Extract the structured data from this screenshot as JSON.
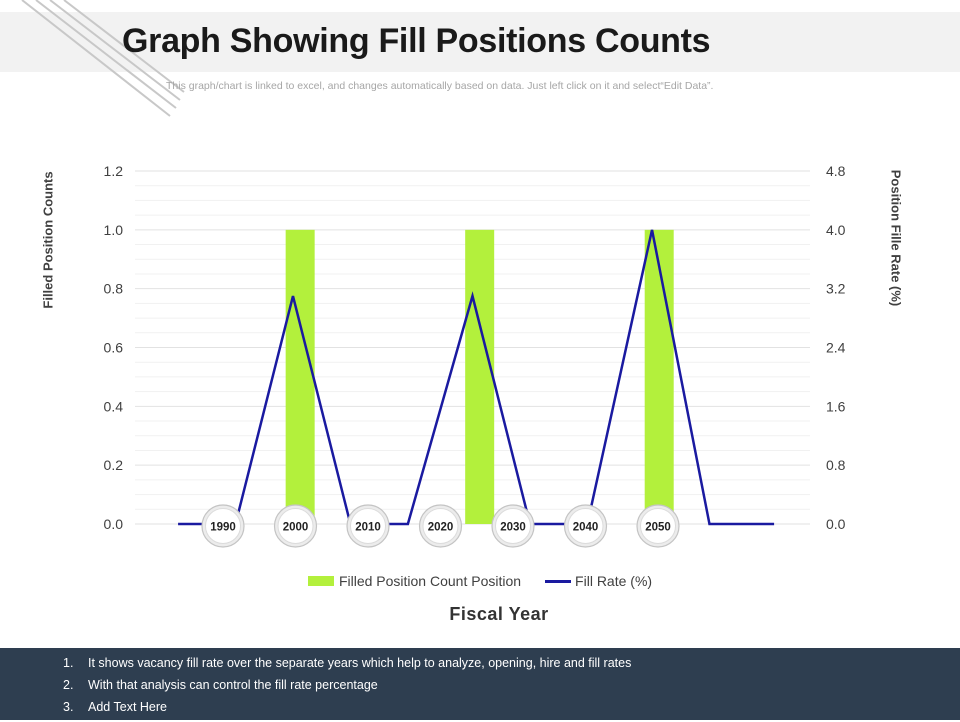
{
  "title": "Graph Showing Fill Positions Counts",
  "subtitle": "This graph/chart is linked to excel,  and changes automatically based on data. Just left click on it and select“Edit Data”.",
  "colors": {
    "bar": "#b3f03c",
    "line": "#1a1aa0",
    "footer_bg": "#2e3e50",
    "title_band": "#f2f2f2"
  },
  "chart_data": {
    "type": "bar",
    "title": "",
    "xlabel": "Fiscal Year",
    "ylabel": "Filled Position Counts",
    "y2label": "Position Fille Rate (%)",
    "categories": [
      "1990",
      "2000",
      "2010",
      "2020",
      "2030",
      "2040",
      "2050"
    ],
    "ylim": [
      0,
      1.2
    ],
    "y2lim": [
      0,
      4.8
    ],
    "yticks": [
      "0.0",
      "0.2",
      "0.4",
      "0.6",
      "0.8",
      "1.0",
      "1.2"
    ],
    "y2ticks": [
      "0.0",
      "0.8",
      "1.6",
      "2.4",
      "3.2",
      "4.0",
      "4.8"
    ],
    "bars": {
      "name": "Filled Position Count Position",
      "x": [
        2000,
        2025,
        2050
      ],
      "values": [
        1.0,
        1.0,
        1.0
      ]
    },
    "line": {
      "name": "Fill Rate (%)",
      "axis": "right",
      "x": [
        1983,
        1991,
        1999,
        2007,
        2015,
        2024,
        2032,
        2040,
        2049,
        2057,
        2066
      ],
      "values": [
        0,
        0,
        3.1,
        0,
        0,
        3.1,
        0,
        0,
        4.0,
        0,
        0
      ]
    },
    "grid": true,
    "legend_position": "bottom"
  },
  "footer": {
    "items": [
      {
        "num": "1.",
        "text": "It shows vacancy fill rate over the separate years which help to analyze, opening, hire and fill rates"
      },
      {
        "num": "2.",
        "text": "With that analysis can control the fill rate percentage"
      },
      {
        "num": "3.",
        "text": "Add Text Here"
      }
    ]
  }
}
